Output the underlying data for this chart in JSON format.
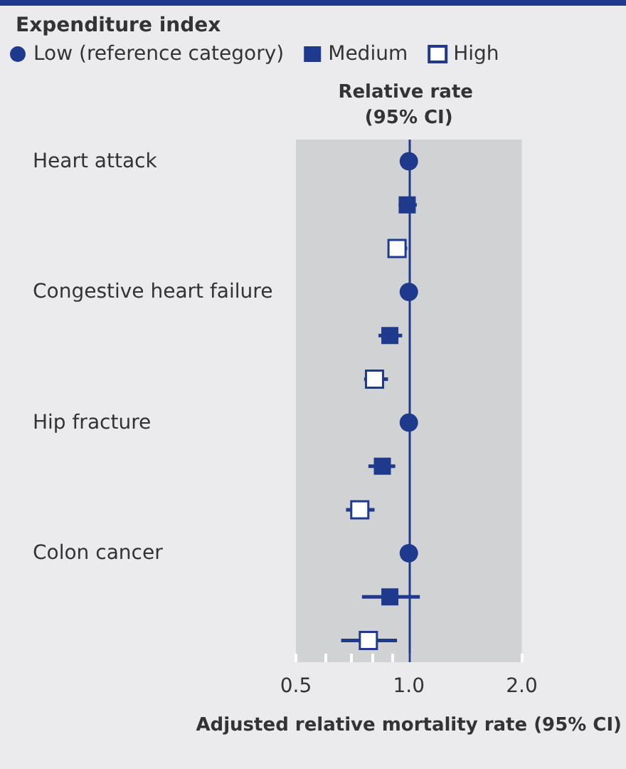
{
  "chart_data": {
    "type": "scatter",
    "orientation": "horizontal",
    "legend_title": "Expenditure index",
    "xlabel": "Adjusted relative mortality rate (95% CI)",
    "categories": [
      "Heart attack",
      null,
      null,
      "Congestive heart failure",
      null,
      null,
      "Hip fracture",
      null,
      null,
      "Colon cancer",
      null,
      null
    ],
    "series": [
      {
        "name": "Low (reference category)",
        "color": "#1f3a8c",
        "marker": "circle",
        "values": [
          1.0,
          null,
          null,
          1.0,
          null,
          null,
          1.0,
          null,
          null,
          1.0,
          null,
          null
        ]
      },
      {
        "name": "Medium",
        "color": "#1f3a8c",
        "marker": "square",
        "values": [
          null,
          0.99,
          null,
          null,
          0.89,
          null,
          null,
          0.85,
          null,
          null,
          0.89,
          null
        ],
        "errors": [
          null,
          [
            0.94,
            1.05
          ],
          null,
          null,
          [
            0.83,
            0.96
          ],
          null,
          null,
          [
            0.78,
            0.92
          ],
          null,
          null,
          [
            0.75,
            1.07
          ],
          null
        ]
      },
      {
        "name": "High",
        "color": "#ffffff",
        "marker": "square",
        "values": [
          null,
          null,
          0.93,
          null,
          null,
          0.81,
          null,
          null,
          0.74,
          null,
          null,
          0.78
        ],
        "errors": [
          null,
          null,
          [
            0.88,
            0.99
          ],
          null,
          null,
          [
            0.76,
            0.88
          ],
          null,
          null,
          [
            0.68,
            0.81
          ],
          null,
          null,
          [
            0.66,
            0.93
          ]
        ]
      }
    ],
    "log": "x",
    "xlim": [
      0.5,
      2.0
    ],
    "xticks": [
      0.5,
      {
        "value": 0.6,
        "label": null
      },
      {
        "value": 0.7,
        "label": null
      },
      {
        "value": 0.8,
        "label": null
      },
      {
        "value": 0.9,
        "label": null
      },
      {
        "value": 1,
        "label": "1.0"
      },
      {
        "value": 2,
        "label": "2.0"
      }
    ],
    "ref_lines": [
      {
        "axis": "x",
        "value": 1,
        "label": "Relative rate (95% CI)",
        "color": "#1f3a8c"
      }
    ],
    "grid": false,
    "legend": "top left"
  }
}
